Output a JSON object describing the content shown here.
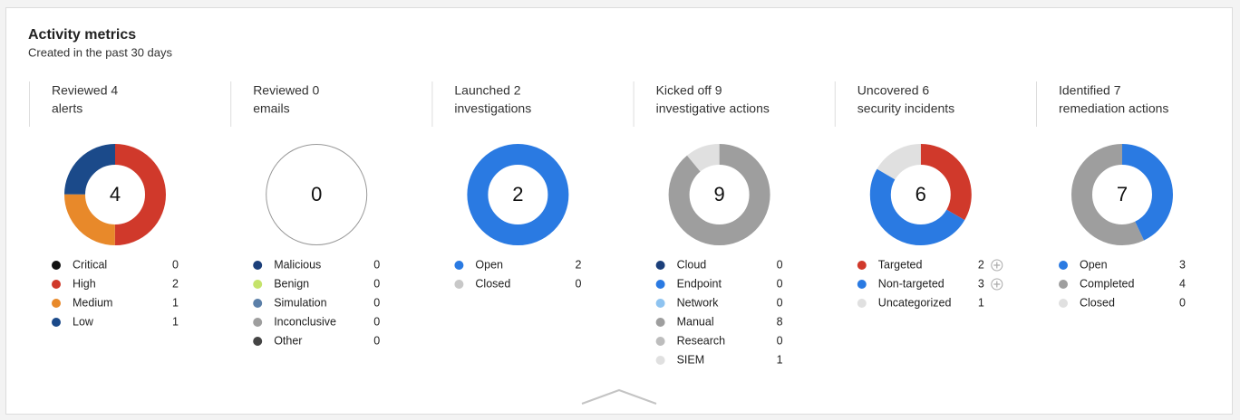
{
  "panel": {
    "title": "Activity metrics",
    "subtitle": "Created in the past 30 days",
    "cards": [
      {
        "heading": [
          "Reviewed 4",
          "alerts"
        ],
        "total": 4,
        "items": [
          {
            "name": "Critical",
            "color": "#111111",
            "value": 0
          },
          {
            "name": "High",
            "color": "#d0392b",
            "value": 2
          },
          {
            "name": "Medium",
            "color": "#e8892a",
            "value": 1
          },
          {
            "name": "Low",
            "color": "#1b4a8a",
            "value": 1
          }
        ]
      },
      {
        "heading": [
          "Reviewed 0",
          "emails"
        ],
        "total": 0,
        "items": [
          {
            "name": "Malicious",
            "color": "#1b3f7a",
            "value": 0
          },
          {
            "name": "Benign",
            "color": "#c5e36b",
            "value": 0
          },
          {
            "name": "Simulation",
            "color": "#5b7fa8",
            "value": 0
          },
          {
            "name": "Inconclusive",
            "color": "#9e9e9e",
            "value": 0
          },
          {
            "name": "Other",
            "color": "#444444",
            "value": 0
          }
        ]
      },
      {
        "heading": [
          "Launched 2",
          "investigations"
        ],
        "total": 2,
        "items": [
          {
            "name": "Open",
            "color": "#2a7ae2",
            "value": 2
          },
          {
            "name": "Closed",
            "color": "#c8c8c8",
            "value": 0
          }
        ]
      },
      {
        "heading": [
          "Kicked off 9",
          "investigative actions"
        ],
        "total": 9,
        "items": [
          {
            "name": "Cloud",
            "color": "#1b3f7a",
            "value": 0
          },
          {
            "name": "Endpoint",
            "color": "#2a7ae2",
            "value": 0
          },
          {
            "name": "Network",
            "color": "#8ec3f0",
            "value": 0
          },
          {
            "name": "Manual",
            "color": "#9e9e9e",
            "value": 8
          },
          {
            "name": "Research",
            "color": "#bdbdbd",
            "value": 0
          },
          {
            "name": "SIEM",
            "color": "#e0e0e0",
            "value": 1
          }
        ]
      },
      {
        "heading": [
          "Uncovered 6",
          "security incidents"
        ],
        "total": 6,
        "items": [
          {
            "name": "Targeted",
            "color": "#d0392b",
            "value": 2,
            "expandable": true
          },
          {
            "name": "Non-targeted",
            "color": "#2a7ae2",
            "value": 3,
            "expandable": true
          },
          {
            "name": "Uncategorized",
            "color": "#e0e0e0",
            "value": 1
          }
        ]
      },
      {
        "heading": [
          "Identified 7",
          "remediation actions"
        ],
        "total": 7,
        "items": [
          {
            "name": "Open",
            "color": "#2a7ae2",
            "value": 3
          },
          {
            "name": "Completed",
            "color": "#9e9e9e",
            "value": 4
          },
          {
            "name": "Closed",
            "color": "#e0e0e0",
            "value": 0
          }
        ]
      }
    ]
  }
}
